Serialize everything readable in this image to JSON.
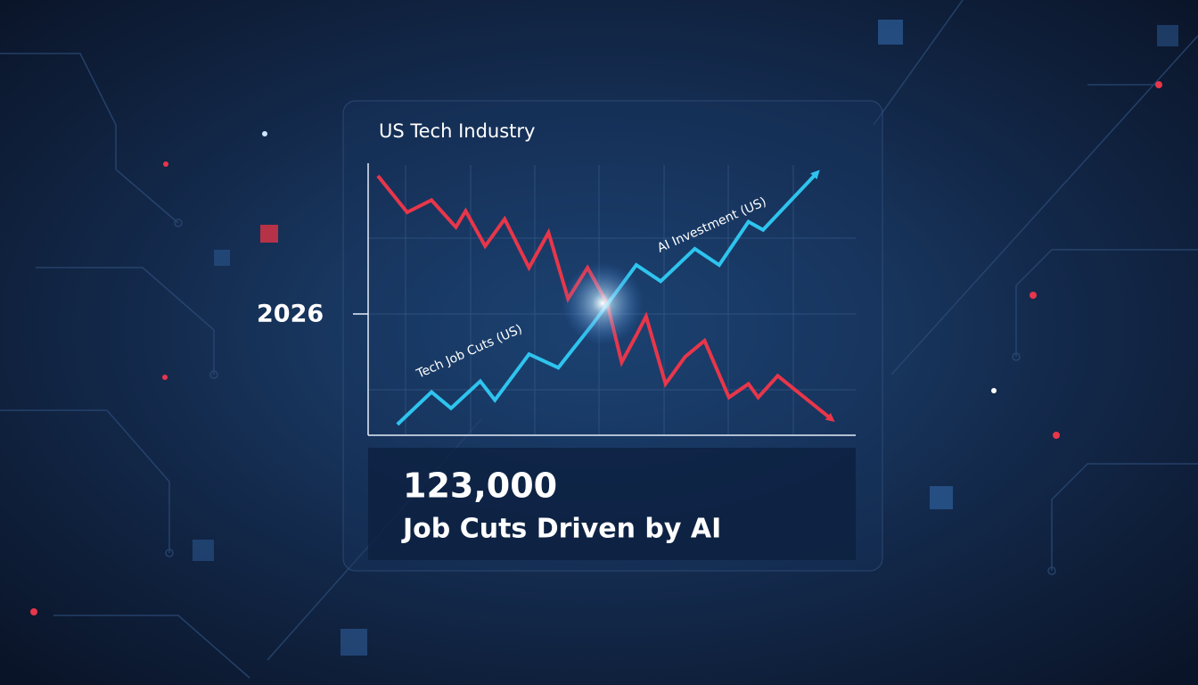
{
  "chart_data": {
    "type": "line",
    "title": "US Tech Industry",
    "year_label": "2026",
    "annotations": [
      "Tech Job Cuts (US)",
      "AI Investment (US)"
    ],
    "callout": {
      "figure": "123,000",
      "caption": "Job Cuts Driven by AI"
    },
    "xlim": [
      0,
      100
    ],
    "ylim": [
      0,
      100
    ],
    "grid": true,
    "series": [
      {
        "color": "#e8364a",
        "x": [
          2,
          8,
          13,
          18,
          20,
          24,
          28,
          33,
          37,
          41,
          45,
          49,
          52,
          55,
          57,
          61,
          65,
          69,
          74,
          78,
          80,
          84,
          95
        ],
        "values": [
          96,
          82.5,
          87,
          77,
          83,
          70,
          80,
          62,
          75,
          50.5,
          62,
          49,
          27,
          37,
          44,
          19,
          29,
          35,
          14,
          19,
          14,
          22,
          6
        ]
      },
      {
        "color": "#2ec4ee",
        "x": [
          6,
          13,
          17,
          23,
          26,
          33,
          39,
          46,
          55,
          60,
          67,
          72,
          78,
          81,
          92
        ],
        "values": [
          4,
          16,
          10,
          20,
          13,
          30,
          25,
          41,
          63,
          57,
          69,
          63,
          79,
          76,
          97
        ]
      }
    ]
  }
}
